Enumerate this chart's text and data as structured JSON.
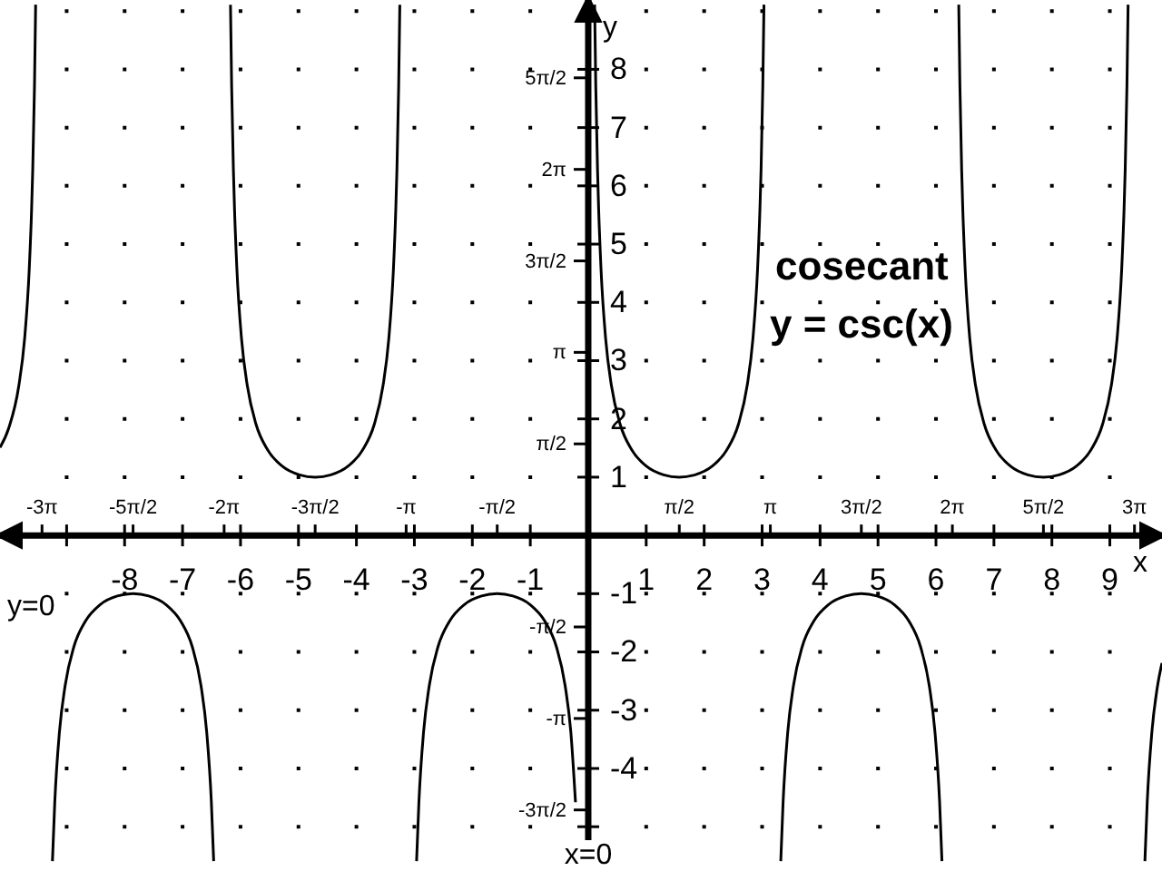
{
  "chart_data": {
    "type": "line",
    "title": "cosecant",
    "subtitle": "y = csc(x)",
    "xlabel": "x",
    "ylabel": "y",
    "annotations": [
      "y=0",
      "x=0"
    ],
    "xlim": [
      -10.15,
      9.9
    ],
    "ylim": [
      -5.76,
      9.19
    ],
    "xticks": [
      {
        "value": -9,
        "label": null
      },
      -8,
      -7,
      -6,
      -5,
      -4,
      -3,
      -2,
      -1,
      1,
      2,
      3,
      4,
      5,
      6,
      7,
      8,
      9
    ],
    "yticks": [
      {
        "value": -5,
        "label": null
      },
      -4,
      -3,
      -2,
      -1,
      1,
      2,
      3,
      4,
      5,
      6,
      7,
      8
    ],
    "x2lim": [
      -10.15,
      9.9
    ],
    "x2ticks": [
      {
        "value": -9.425,
        "label": "-3π"
      },
      {
        "value": -7.854,
        "label": "-5π/2"
      },
      {
        "value": -6.283,
        "label": "-2π"
      },
      {
        "value": -4.712,
        "label": "-3π/2"
      },
      {
        "value": -3.142,
        "label": "-π"
      },
      {
        "value": -1.571,
        "label": "-π/2"
      },
      {
        "value": 1.571,
        "label": "π/2"
      },
      {
        "value": 3.142,
        "label": "π"
      },
      {
        "value": 4.712,
        "label": "3π/2"
      },
      {
        "value": 6.283,
        "label": "2π"
      },
      {
        "value": 7.854,
        "label": "5π/2"
      },
      {
        "value": 9.425,
        "label": "3π"
      }
    ],
    "y2lim": [
      -5.76,
      9.19
    ],
    "y2ticks": [
      {
        "value": -4.712,
        "label": "-3π/2"
      },
      {
        "value": -3.142,
        "label": "-π"
      },
      {
        "value": -1.571,
        "label": "-π/2"
      },
      {
        "value": 1.571,
        "label": "π/2"
      },
      {
        "value": 3.142,
        "label": "π"
      },
      {
        "value": 4.712,
        "label": "3π/2"
      },
      {
        "value": 6.283,
        "label": "2π"
      },
      {
        "value": 7.854,
        "label": "5π/2"
      }
    ],
    "grid": true,
    "series": [
      {
        "color": "#000000",
        "x": [
          -10.15,
          -10.0,
          -9.825,
          -9.725,
          -9.645,
          -9.605,
          -9.585,
          -9.555,
          -9.535
        ],
        "values": [
          1.51,
          1.84,
          2.57,
          3.38,
          4.58,
          5.59,
          6.28,
          7.71,
          9.11
        ]
      },
      {
        "color": "#000000",
        "x": [
          -9.245,
          -9.205,
          -9.125,
          -9.025,
          -8.875,
          -8.675,
          -8.425,
          -8.125,
          -7.854,
          -7.583,
          -7.283,
          -7.033,
          -6.833,
          -6.683,
          -6.583,
          -6.503,
          -6.463
        ],
        "values": [
          -5.59,
          -4.58,
          -3.38,
          -2.57,
          -1.91,
          -1.47,
          -1.19,
          -1.04,
          -1,
          -1.04,
          -1.19,
          -1.47,
          -1.91,
          -2.57,
          -3.38,
          -4.58,
          -5.59
        ]
      },
      {
        "color": "#000000",
        "x": [
          -6.173,
          -6.153,
          -6.123,
          -6.103,
          -6.063,
          -5.983,
          -5.883,
          -5.733,
          -5.533,
          -5.283,
          -4.983,
          -4.712,
          -4.441,
          -4.141,
          -3.891,
          -3.691,
          -3.541,
          -3.441,
          -3.361,
          -3.321,
          -3.301,
          -3.271,
          -3.251
        ],
        "values": [
          9.11,
          7.71,
          6.28,
          5.59,
          4.58,
          3.38,
          2.57,
          1.91,
          1.47,
          1.19,
          1.04,
          1,
          1.04,
          1.19,
          1.47,
          1.91,
          2.57,
          3.38,
          4.58,
          5.59,
          6.28,
          7.71,
          9.11
        ]
      },
      {
        "color": "#000000",
        "x": [
          -2.962,
          -2.922,
          -2.842,
          -2.742,
          -2.592,
          -2.392,
          -2.142,
          -1.842,
          -1.571,
          -1.3,
          -1.0,
          -0.75,
          -0.55,
          -0.4,
          -0.3,
          -0.22
        ],
        "values": [
          -5.59,
          -4.58,
          -3.38,
          -2.57,
          -1.91,
          -1.47,
          -1.19,
          -1.04,
          -1,
          -1.04,
          -1.19,
          -1.47,
          -1.91,
          -2.57,
          -3.38,
          -4.58
        ]
      },
      {
        "color": "#000000",
        "x": [
          0.11,
          0.13,
          0.16,
          0.18,
          0.22,
          0.3,
          0.4,
          0.55,
          0.75,
          1.0,
          1.3,
          1.571,
          1.842,
          2.142,
          2.392,
          2.592,
          2.742,
          2.842,
          2.922,
          2.962,
          2.982,
          3.012,
          3.032
        ],
        "values": [
          9.11,
          7.71,
          6.28,
          5.59,
          4.58,
          3.38,
          2.57,
          1.91,
          1.47,
          1.19,
          1.04,
          1,
          1.04,
          1.19,
          1.47,
          1.91,
          2.57,
          3.38,
          4.58,
          5.59,
          6.28,
          7.71,
          9.11
        ]
      },
      {
        "color": "#000000",
        "x": [
          3.322,
          3.362,
          3.442,
          3.542,
          3.692,
          3.892,
          4.142,
          4.442,
          4.712,
          4.983,
          5.283,
          5.533,
          5.733,
          5.883,
          5.983,
          6.063,
          6.103
        ],
        "values": [
          -5.59,
          -4.58,
          -3.38,
          -2.57,
          -1.91,
          -1.47,
          -1.19,
          -1.04,
          -1,
          -1.04,
          -1.19,
          -1.47,
          -1.91,
          -2.57,
          -3.38,
          -4.58,
          -5.59
        ]
      },
      {
        "color": "#000000",
        "x": [
          6.393,
          6.413,
          6.443,
          6.463,
          6.503,
          6.583,
          6.683,
          6.833,
          7.033,
          7.283,
          7.583,
          7.854,
          8.125,
          8.425,
          8.675,
          8.875,
          9.025,
          9.125,
          9.205,
          9.245,
          9.265,
          9.295,
          9.315
        ],
        "values": [
          9.11,
          7.71,
          6.28,
          5.59,
          4.58,
          3.38,
          2.57,
          1.91,
          1.47,
          1.19,
          1.04,
          1,
          1.04,
          1.19,
          1.47,
          1.91,
          2.57,
          3.38,
          4.58,
          5.59,
          6.28,
          7.71,
          9.11
        ]
      },
      {
        "color": "#000000",
        "x": [
          9.605,
          9.645,
          9.725,
          9.825,
          9.9
        ],
        "values": [
          -5.59,
          -4.58,
          -3.38,
          -2.57,
          -2.19
        ]
      }
    ]
  }
}
